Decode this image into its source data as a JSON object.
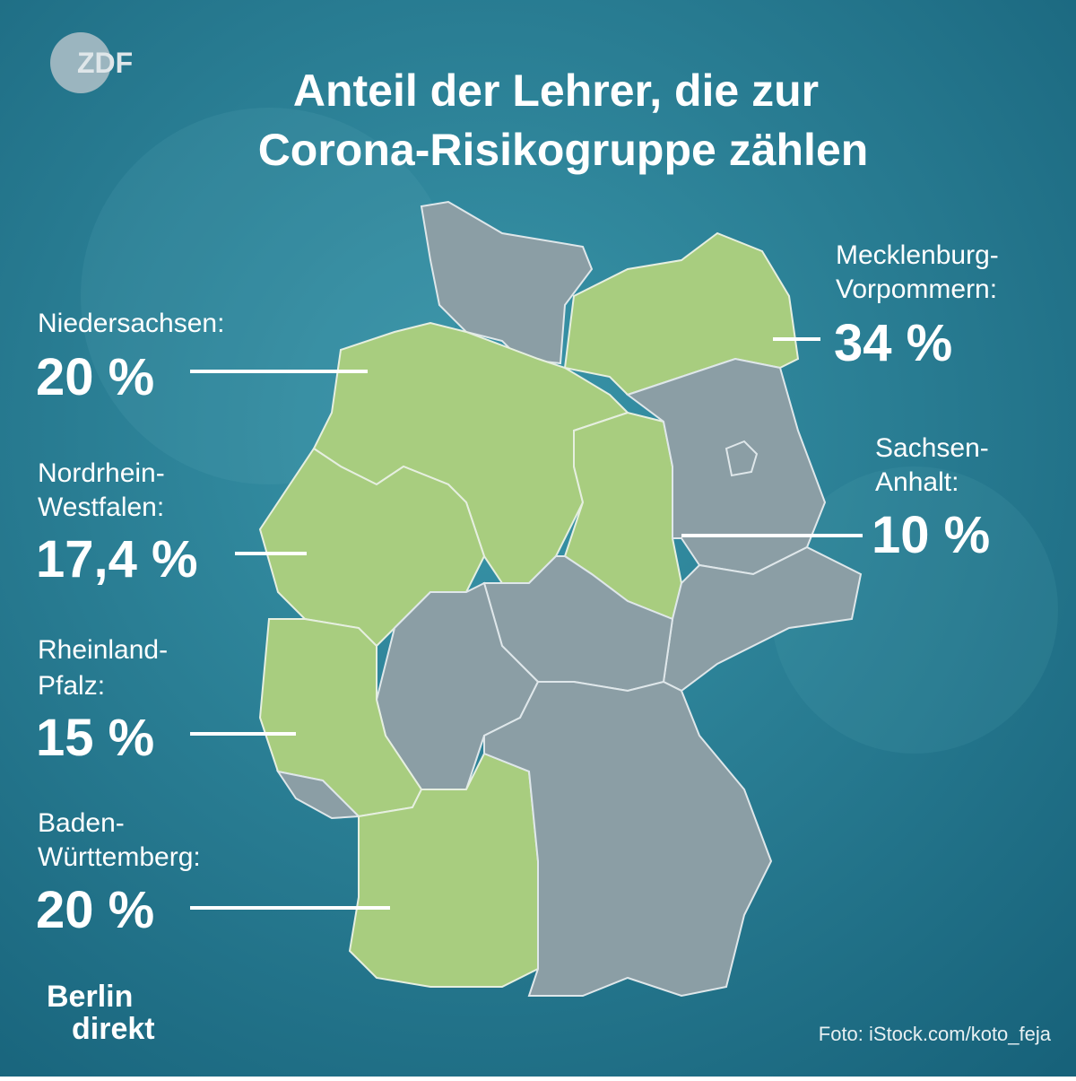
{
  "header": {
    "logo": "ZDF",
    "title_lines": [
      "Anteil der Lehrer, die zur",
      "Corona-Risikogruppe zählen"
    ]
  },
  "states": [
    {
      "name_lines": [
        "Niedersachsen:"
      ],
      "value": "20 %"
    },
    {
      "name_lines": [
        "Nordrhein-",
        "Westfalen:"
      ],
      "value": "17,4 %"
    },
    {
      "name_lines": [
        "Rheinland-",
        "Pfalz:"
      ],
      "value": "15 %"
    },
    {
      "name_lines": [
        "Baden-",
        "Württemberg:"
      ],
      "value": "20 %"
    },
    {
      "name_lines": [
        "Mecklenburg-",
        "Vorpommern:"
      ],
      "value": "34 %"
    },
    {
      "name_lines": [
        "Sachsen-",
        "Anhalt:"
      ],
      "value": "10 %"
    }
  ],
  "footer": {
    "brand_lines": [
      "Berlin",
      "direkt"
    ],
    "credit": "Foto: iStock.com/koto_feja"
  }
}
